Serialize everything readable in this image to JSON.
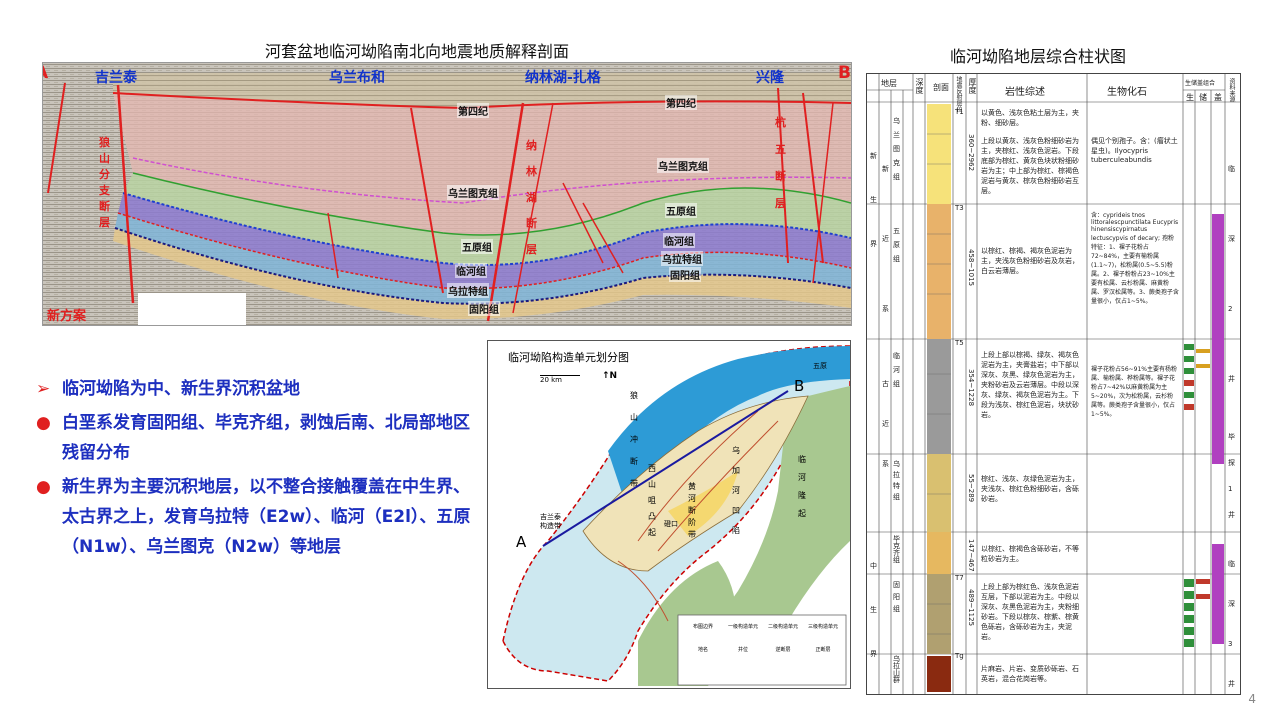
{
  "seismic": {
    "title": "河套盆地临河坳陷南北向地震地质解释剖面",
    "end_a": "A",
    "end_b": "B",
    "place_1": "吉兰泰",
    "place_2": "乌兰布和",
    "place_3": "纳林湖-扎格",
    "place_4": "兴隆",
    "fault_left": [
      "狼",
      "山",
      "分",
      "支",
      "断",
      "层"
    ],
    "fault_mid": [
      "纳",
      "林",
      "湖",
      "断",
      "层"
    ],
    "fault_right": [
      "杭",
      "五",
      "断",
      "层"
    ],
    "formations": {
      "quaternary_1": "第四纪",
      "quaternary_2": "第四纪",
      "wulantuke_1": "乌兰图克组",
      "wulantuke_2": "乌兰图克组",
      "wuyuan_1": "五原组",
      "wuyuan_2": "五原组",
      "linhe_1": "临河组",
      "linhe_2": "临河组",
      "wulate_1": "乌拉特组",
      "wulate_2": "乌拉特组",
      "guyang_1": "固阳组",
      "guyang_2": "固阳组"
    },
    "scheme": "新方案"
  },
  "bullets": [
    {
      "marker": "➢",
      "text": "临河坳陷为中、新生界沉积盆地"
    },
    {
      "marker": "●",
      "text": "白垩系发育固阳组、毕克齐组，剥蚀后南、北局部地区残留分布"
    },
    {
      "marker": "●",
      "text": "新生界为主要沉积地层，以不整合接触覆盖在中生界、太古界之上，发育乌拉特（E2w）、临河（E2l）、五原（N1w）、乌兰图克（N2w）等地层"
    }
  ],
  "map": {
    "title": "临河坳陷构造单元划分图",
    "scale": "20 km",
    "north": "N",
    "end_a": "A",
    "end_b": "B",
    "unit_1": [
      "狼",
      "山",
      "冲",
      "断",
      "带"
    ],
    "unit_2": [
      "西",
      "山",
      "咀",
      "凸",
      "起"
    ],
    "unit_3": [
      "吉兰泰",
      "构造带"
    ],
    "unit_4": [
      "五原"
    ],
    "unit_5": [
      "乌",
      "加",
      "河",
      "凹",
      "陷"
    ],
    "unit_6": [
      "黄",
      "河",
      "断",
      "阶",
      "带"
    ],
    "unit_7": [
      "临",
      "河",
      "隆",
      "起"
    ],
    "unit_8": [
      "磴口"
    ],
    "legend": [
      "布图边界",
      "一级构造单元",
      "二级构造单元",
      "三级构造单元",
      "地名",
      "井位",
      "逆断层",
      "正断层"
    ]
  },
  "column": {
    "title": "临河坳陷地层综合柱状图",
    "headers": {
      "strata": "地层",
      "depth": "深度",
      "section": "剖面",
      "interface": "地震反射层位",
      "thickness": "厚度",
      "lithology": "岩性综述",
      "fossils": "生物化石",
      "combo": "生储盖组合",
      "source": "生",
      "reservoir": "储",
      "cap": "盖",
      "wells": "资料来源"
    },
    "eras": [
      "新",
      "生",
      "界",
      "古",
      "生",
      "界",
      "中",
      "生",
      "界"
    ],
    "systems": [
      "新",
      "近",
      "系",
      "古",
      "近",
      "系",
      "白",
      "垩",
      "系"
    ],
    "formations": [
      "乌兰图克组",
      "五原组",
      "临河组",
      "乌拉特组",
      "毕克齐组",
      "固阳组",
      "乌拉山群"
    ],
    "thickness": [
      "360~2962",
      "458~1015",
      "354~1228",
      "55~289",
      "147~467",
      "489~1125"
    ],
    "reflectors": [
      "T1",
      "T3",
      "T5",
      "T7",
      "Tg"
    ],
    "lith": [
      "以黄色、浅灰色粘土层为主，夹粉、细砂层。",
      "上段以黄灰、浅灰色粉细砂岩为主，夹棕红、浅灰色泥岩。下段底部为棕红、黄灰色块状粉细砂岩为主；中上部为棕红、棕褐色泥岩与黄灰、棕灰色粉细砂岩互层。",
      "以棕红、棕褐、褐灰色泥岩为主，夹浅灰色粉细砂岩及灰岩，白云岩薄层。",
      "上段上部以棕褐、绿灰、褐灰色泥岩为主，夹膏盐岩；中下部以深灰、灰黑、绿灰色泥岩为主，夹粉砂岩及云岩薄层。中段以深灰、绿灰、褐灰色泥岩为主。下段为浅灰、棕红色泥岩，块状砂岩。",
      "棕红、浅灰、灰绿色泥岩为主，夹浅灰、棕红色粉细砂岩，含砾砂岩。",
      "以棕红、棕褐色含砾砂岩，不等粒砂岩为主。",
      "上段上部为棕红色、浅灰色泥岩互层，下部以泥岩为主。中段以深灰、灰黑色泥岩为主，夹粉细砂岩。下段以棕灰、棕紫、棕黄色砾岩，含砾砂岩为主，夹泥岩。",
      "片麻岩、片岩、变质砂砾岩、石英岩，混合花岗岩等。"
    ],
    "fossil": [
      "偶见个别孢子。含：(瘤状土星虫)。Ilyocypris tuberculeabundis",
      "含：cyprideis tnos littoralescpunctilata Eucypris hinensiscypirnatus lectuscypvis of decary; 孢粉特征：1、裸子花粉占72~84%，主要有榆粉属(1.1~7)，松粉属(0.5~5.5)粉属。2、裸子粉粉占23~10%主要有松属、云杉粉属、麻黄粉属、罗汉松属等。3、蕨类孢子含量很小，仅占1~5%。",
      "裸子花粉占56~91%主要有杨粉属、榆粉属、桦粉属等。裸子花粉占7~42%以麻黄粉属为主5~20%，次为松粉属，云杉粉属等。蕨类孢子含量很小，仅占1~5%。"
    ],
    "wells": [
      "临",
      "深",
      "2",
      "井",
      "毕",
      "探",
      "1",
      "井",
      "临",
      "深",
      "3",
      "井"
    ]
  },
  "page_number": "4"
}
